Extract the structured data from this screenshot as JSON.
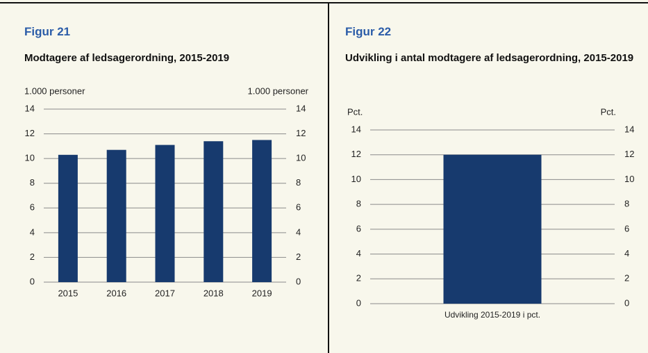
{
  "chart_data": [
    {
      "type": "bar",
      "figure_label": "Figur 21",
      "title": "Modtagere af ledsagerordning, 2015-2019",
      "y_label": "1.000 personer",
      "y2_label": "1.000 personer",
      "categories": [
        "2015",
        "2016",
        "2017",
        "2018",
        "2019"
      ],
      "values": [
        10.3,
        10.7,
        11.1,
        11.4,
        11.5
      ],
      "color": "#173a6e",
      "ylim": [
        0,
        14
      ],
      "yticks": [
        0,
        2,
        4,
        6,
        8,
        10,
        12,
        14
      ],
      "y2lim": [
        0,
        14
      ],
      "y2ticks": [
        0,
        2,
        4,
        6,
        8,
        10,
        12,
        14
      ],
      "grid": true
    },
    {
      "type": "bar",
      "figure_label": "Figur 22",
      "title": "Udvikling i antal modtagere af ledsagerordning, 2015-2019",
      "y_label": "Pct.",
      "y2_label": "Pct.",
      "categories": [
        "Udvikling 2015-2019 i pct."
      ],
      "values": [
        12.0
      ],
      "color": "#173a6e",
      "ylim": [
        0,
        14
      ],
      "yticks": [
        0,
        2,
        4,
        6,
        8,
        10,
        12,
        14
      ],
      "y2lim": [
        0,
        14
      ],
      "y2ticks": [
        0,
        2,
        4,
        6,
        8,
        10,
        12,
        14
      ],
      "grid": true
    }
  ]
}
